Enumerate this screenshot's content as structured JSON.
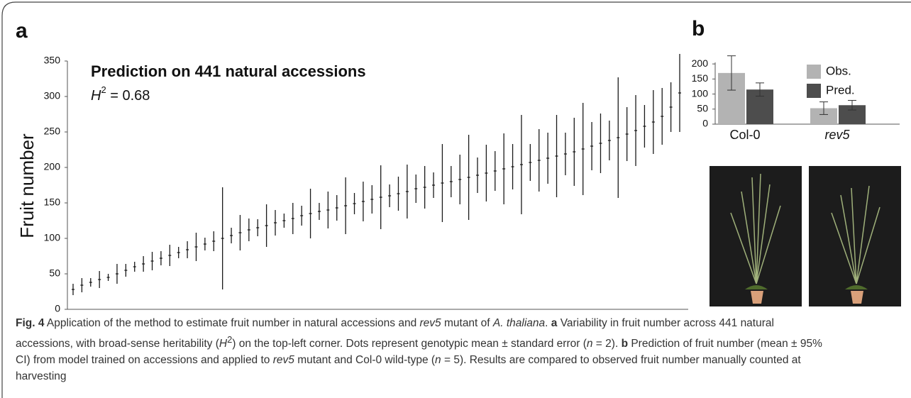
{
  "chart_data": [
    {
      "type": "errorbar",
      "panel_label": "a",
      "annotation": "Prediction on 441 natural accessions",
      "heritability": {
        "symbol": "H",
        "superscript": "2",
        "text": " = 0.68"
      },
      "y_label": "Fruit number",
      "ylim": [
        0,
        350
      ],
      "yticks": [
        0,
        50,
        100,
        150,
        200,
        250,
        300,
        350
      ],
      "color": "#1a1a1a",
      "values": [
        28,
        34,
        38,
        42,
        45,
        50,
        55,
        60,
        64,
        68,
        72,
        76,
        80,
        84,
        88,
        92,
        96,
        100,
        104,
        108,
        112,
        115,
        118,
        122,
        125,
        128,
        132,
        135,
        138,
        140,
        143,
        146,
        149,
        152,
        155,
        158,
        160,
        163,
        166,
        170,
        172,
        175,
        178,
        180,
        183,
        186,
        189,
        192,
        195,
        198,
        201,
        204,
        207,
        210,
        213,
        216,
        219,
        222,
        226,
        230,
        234,
        238,
        242,
        247,
        252,
        258,
        264,
        272,
        285,
        305
      ],
      "errors": [
        8,
        10,
        6,
        12,
        5,
        14,
        9,
        7,
        11,
        13,
        10,
        15,
        8,
        12,
        20,
        9,
        14,
        72,
        11,
        25,
        16,
        12,
        30,
        18,
        10,
        22,
        14,
        35,
        12,
        26,
        18,
        40,
        15,
        28,
        20,
        45,
        16,
        24,
        38,
        20,
        30,
        18,
        55,
        22,
        35,
        60,
        25,
        40,
        28,
        50,
        32,
        70,
        26,
        44,
        36,
        58,
        30,
        48,
        65,
        34,
        42,
        28,
        85,
        38,
        50,
        30,
        45,
        40,
        35,
        55
      ]
    },
    {
      "type": "bar",
      "panel_label": "b",
      "categories": [
        "Col-0",
        "rev5"
      ],
      "ylim": [
        0,
        205
      ],
      "yticks": [
        0,
        50,
        100,
        150,
        200
      ],
      "series": [
        {
          "name": "Obs.",
          "color": "#b3b3b3",
          "values": [
            170,
            53
          ],
          "errors": [
            57,
            21
          ]
        },
        {
          "name": "Pred.",
          "color": "#4d4d4d",
          "values": [
            115,
            63
          ],
          "errors": [
            22,
            16
          ]
        }
      ]
    }
  ],
  "caption": [
    "Fig. 4",
    "  Application of the method to estimate fruit number in natural accessions and ",
    "rev5",
    " mutant of ",
    "A. thaliana",
    ". ",
    "a",
    " Variability in fruit number across 441 natural accessions, with broad-sense heritability (",
    "H",
    "2",
    ") on the top-left corner. Dots represent genotypic mean ± standard error (",
    "n",
    " = 2). ",
    "b",
    " Prediction of fruit number (mean ± 95% CI) from model trained on accessions and applied to ",
    "rev5",
    " mutant and Col-0 wild-type (",
    "n",
    " = 5). Results are compared to observed fruit number manually counted at harvesting"
  ]
}
